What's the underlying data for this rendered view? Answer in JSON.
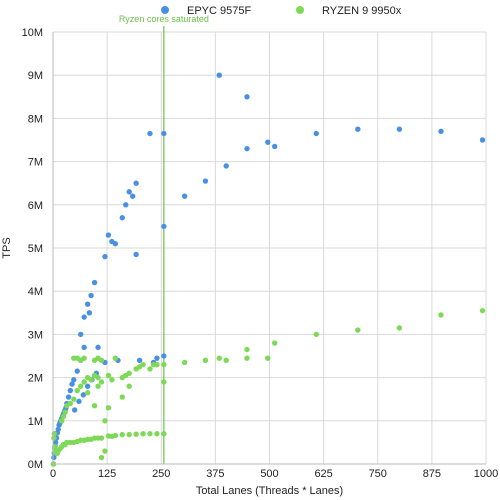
{
  "chart_data": {
    "type": "scatter",
    "xlabel": "Total Lanes (Threads  * Lanes)",
    "ylabel": "TPS",
    "xlim": [
      0,
      1000
    ],
    "ylim": [
      0,
      10000000
    ],
    "x_ticks": [
      "0",
      "125",
      "250",
      "375",
      "500",
      "625",
      "750",
      "875",
      "1000"
    ],
    "y_ticks": [
      "0M",
      "1M",
      "2M",
      "3M",
      "4M",
      "5M",
      "6M",
      "7M",
      "8M",
      "9M",
      "10M"
    ],
    "grid": true,
    "legend_position": "top",
    "annotation": {
      "text": "Ryzen cores saturated",
      "x": 256,
      "color": "#6cc04a"
    },
    "series": [
      {
        "name": "EPYC 9575F",
        "color": "#4a90e2",
        "points": [
          [
            1,
            0
          ],
          [
            2,
            150000
          ],
          [
            3,
            250000
          ],
          [
            4,
            350000
          ],
          [
            5,
            420000
          ],
          [
            6,
            500000
          ],
          [
            8,
            600000
          ],
          [
            10,
            720000
          ],
          [
            12,
            800000
          ],
          [
            14,
            900000
          ],
          [
            16,
            950000
          ],
          [
            18,
            1000000
          ],
          [
            20,
            1050000
          ],
          [
            22,
            1100000
          ],
          [
            24,
            1150000
          ],
          [
            26,
            1200000
          ],
          [
            28,
            1250000
          ],
          [
            30,
            1300000
          ],
          [
            32,
            1400000
          ],
          [
            36,
            1550000
          ],
          [
            40,
            1700000
          ],
          [
            44,
            1850000
          ],
          [
            48,
            1950000
          ],
          [
            56,
            2150000
          ],
          [
            64,
            2400000
          ],
          [
            72,
            2700000
          ],
          [
            50,
            1250000
          ],
          [
            60,
            1450000
          ],
          [
            70,
            1600000
          ],
          [
            80,
            1800000
          ],
          [
            90,
            1950000
          ],
          [
            100,
            2100000
          ],
          [
            64,
            3000000
          ],
          [
            72,
            3400000
          ],
          [
            80,
            3700000
          ],
          [
            88,
            3900000
          ],
          [
            96,
            4200000
          ],
          [
            84,
            3500000
          ],
          [
            104,
            2700000
          ],
          [
            120,
            4800000
          ],
          [
            128,
            5300000
          ],
          [
            136,
            5150000
          ],
          [
            144,
            5100000
          ],
          [
            160,
            5700000
          ],
          [
            168,
            6000000
          ],
          [
            176,
            6300000
          ],
          [
            184,
            6200000
          ],
          [
            192,
            6500000
          ],
          [
            192,
            4850000
          ],
          [
            120,
            2350000
          ],
          [
            150,
            2400000
          ],
          [
            200,
            2400000
          ],
          [
            240,
            2450000
          ],
          [
            256,
            2500000
          ],
          [
            232,
            2350000
          ],
          [
            224,
            7650000
          ],
          [
            256,
            7650000
          ],
          [
            256,
            5500000
          ],
          [
            304,
            6200000
          ],
          [
            352,
            6550000
          ],
          [
            384,
            9000000
          ],
          [
            400,
            6900000
          ],
          [
            448,
            8500000
          ],
          [
            448,
            7300000
          ],
          [
            496,
            7450000
          ],
          [
            512,
            7350000
          ],
          [
            608,
            7650000
          ],
          [
            704,
            7750000
          ],
          [
            800,
            7750000
          ],
          [
            896,
            7700000
          ],
          [
            992,
            7500000
          ]
        ]
      },
      {
        "name": "RYZEN 9 9950x",
        "color": "#7ed957",
        "points": [
          [
            1,
            0
          ],
          [
            2,
            600000
          ],
          [
            3,
            700000
          ],
          [
            4,
            400000
          ],
          [
            6,
            300000
          ],
          [
            8,
            250000
          ],
          [
            10,
            250000
          ],
          [
            12,
            300000
          ],
          [
            16,
            350000
          ],
          [
            20,
            400000
          ],
          [
            24,
            450000
          ],
          [
            28,
            450000
          ],
          [
            32,
            500000
          ],
          [
            40,
            500000
          ],
          [
            48,
            500000
          ],
          [
            56,
            520000
          ],
          [
            64,
            550000
          ],
          [
            72,
            550000
          ],
          [
            80,
            570000
          ],
          [
            88,
            570000
          ],
          [
            96,
            600000
          ],
          [
            104,
            600000
          ],
          [
            112,
            600000
          ],
          [
            128,
            650000
          ],
          [
            136,
            640000
          ],
          [
            144,
            660000
          ],
          [
            160,
            680000
          ],
          [
            176,
            680000
          ],
          [
            192,
            690000
          ],
          [
            208,
            700000
          ],
          [
            224,
            700000
          ],
          [
            240,
            700000
          ],
          [
            256,
            700000
          ],
          [
            112,
            150000
          ],
          [
            120,
            300000
          ],
          [
            20,
            1000000
          ],
          [
            24,
            1100000
          ],
          [
            28,
            1200000
          ],
          [
            32,
            1350000
          ],
          [
            40,
            1400000
          ],
          [
            48,
            1500000
          ],
          [
            56,
            1700000
          ],
          [
            64,
            1800000
          ],
          [
            72,
            1900000
          ],
          [
            80,
            2000000
          ],
          [
            88,
            1950000
          ],
          [
            96,
            2050000
          ],
          [
            104,
            2000000
          ],
          [
            112,
            1900000
          ],
          [
            128,
            2050000
          ],
          [
            136,
            1950000
          ],
          [
            160,
            2000000
          ],
          [
            168,
            2050000
          ],
          [
            176,
            2100000
          ],
          [
            192,
            2200000
          ],
          [
            200,
            2250000
          ],
          [
            208,
            2300000
          ],
          [
            224,
            2200000
          ],
          [
            232,
            2300000
          ],
          [
            240,
            2300000
          ],
          [
            256,
            2300000
          ],
          [
            256,
            1900000
          ],
          [
            48,
            2450000
          ],
          [
            56,
            2450000
          ],
          [
            64,
            2400000
          ],
          [
            72,
            2450000
          ],
          [
            96,
            2400000
          ],
          [
            104,
            2450000
          ],
          [
            112,
            2400000
          ],
          [
            144,
            2450000
          ],
          [
            80,
            1650000
          ],
          [
            96,
            1350000
          ],
          [
            104,
            1800000
          ],
          [
            120,
            1000000
          ],
          [
            128,
            1300000
          ],
          [
            160,
            1550000
          ],
          [
            176,
            1800000
          ],
          [
            304,
            2350000
          ],
          [
            352,
            2400000
          ],
          [
            384,
            2450000
          ],
          [
            400,
            2400000
          ],
          [
            448,
            2450000
          ],
          [
            448,
            2650000
          ],
          [
            496,
            2450000
          ],
          [
            512,
            2800000
          ],
          [
            608,
            3000000
          ],
          [
            704,
            3100000
          ],
          [
            800,
            3150000
          ],
          [
            896,
            3450000
          ],
          [
            992,
            3550000
          ]
        ]
      }
    ]
  }
}
